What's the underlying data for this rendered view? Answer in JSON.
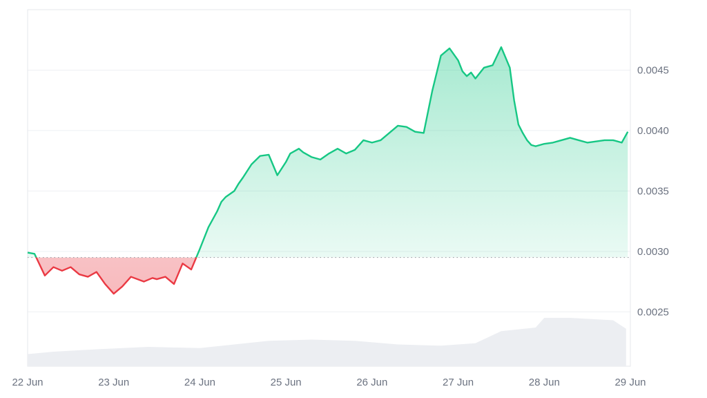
{
  "chart_data": {
    "type": "area",
    "title": "",
    "xlabel": "",
    "ylabel": "",
    "x_tick_labels": [
      "22 Jun",
      "23 Jun",
      "24 Jun",
      "25 Jun",
      "26 Jun",
      "27 Jun",
      "28 Jun",
      "29 Jun"
    ],
    "y_tick_labels": [
      "0.0045",
      "0.0040",
      "0.0035",
      "0.0030",
      "0.0025"
    ],
    "y_ticks": [
      0.0045,
      0.004,
      0.0035,
      0.003,
      0.0025
    ],
    "ylim": [
      0.00205,
      0.005
    ],
    "xlim": [
      0,
      7
    ],
    "grid": true,
    "baseline": 0.00295,
    "x_unit": "days from 22 Jun",
    "series": [
      {
        "x": [
          0.0,
          0.08,
          0.2,
          0.3,
          0.4,
          0.5,
          0.6,
          0.7,
          0.8,
          0.9,
          1.0,
          1.1,
          1.2,
          1.35,
          1.45,
          1.5,
          1.6,
          1.7,
          1.8,
          1.9,
          2.0,
          2.1,
          2.2,
          2.25,
          2.3,
          2.4,
          2.45,
          2.5,
          2.6,
          2.7,
          2.8,
          2.9,
          3.0,
          3.05,
          3.1,
          3.15,
          3.2,
          3.25,
          3.3,
          3.4,
          3.5,
          3.6,
          3.7,
          3.8,
          3.9,
          4.0,
          4.1,
          4.2,
          4.3,
          4.4,
          4.5,
          4.6,
          4.7,
          4.8,
          4.9,
          5.0,
          5.05,
          5.1,
          5.15,
          5.2,
          5.3,
          5.4,
          5.5,
          5.6,
          5.65,
          5.7,
          5.75,
          5.8,
          5.85,
          5.9,
          6.0,
          6.1,
          6.2,
          6.3,
          6.4,
          6.5,
          6.6,
          6.7,
          6.8,
          6.9,
          6.97
        ],
        "y": [
          0.00299,
          0.00298,
          0.0028,
          0.00287,
          0.00284,
          0.00287,
          0.00281,
          0.00279,
          0.00283,
          0.00273,
          0.00265,
          0.00271,
          0.00279,
          0.00275,
          0.00278,
          0.00277,
          0.00279,
          0.00273,
          0.0029,
          0.00285,
          0.00302,
          0.0032,
          0.00333,
          0.00341,
          0.00345,
          0.0035,
          0.00356,
          0.00361,
          0.00372,
          0.00379,
          0.0038,
          0.00363,
          0.00374,
          0.00381,
          0.00383,
          0.00385,
          0.00382,
          0.0038,
          0.00378,
          0.00376,
          0.00381,
          0.00385,
          0.00381,
          0.00384,
          0.00392,
          0.0039,
          0.00392,
          0.00398,
          0.00404,
          0.00403,
          0.00399,
          0.00398,
          0.00433,
          0.00462,
          0.00468,
          0.00458,
          0.00449,
          0.00445,
          0.00448,
          0.00443,
          0.00452,
          0.00454,
          0.00469,
          0.00452,
          0.00425,
          0.00405,
          0.00398,
          0.00392,
          0.00388,
          0.00387,
          0.00389,
          0.0039,
          0.00392,
          0.00394,
          0.00392,
          0.0039,
          0.00391,
          0.00392,
          0.00392,
          0.0039,
          0.00399
        ]
      }
    ],
    "volume": {
      "x": [
        0.0,
        0.3,
        0.8,
        1.4,
        2.0,
        2.4,
        2.8,
        3.3,
        3.8,
        4.3,
        4.8,
        5.2,
        5.5,
        5.9,
        6.0,
        6.3,
        6.8,
        6.95
      ],
      "y": [
        0.00215,
        0.00217,
        0.00219,
        0.00221,
        0.0022,
        0.00223,
        0.00226,
        0.00227,
        0.00226,
        0.00223,
        0.00222,
        0.00224,
        0.00234,
        0.00237,
        0.00245,
        0.00245,
        0.00243,
        0.00236
      ]
    },
    "colors": {
      "up": "#16c784",
      "up_fill": "#16c784",
      "down": "#ea3943",
      "down_fill": "#ea3943",
      "volume": "#eceef2",
      "baseline": "#9aa0a6"
    }
  }
}
